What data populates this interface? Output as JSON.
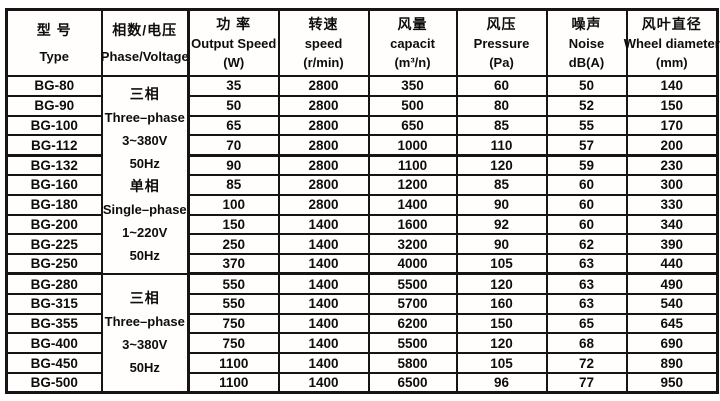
{
  "table": {
    "columns": [
      {
        "zh": "型 号",
        "en": "Type"
      },
      {
        "zh": "相数/电压",
        "en": "Phase/Voltage"
      },
      {
        "zh": "功 率",
        "en": "Output Speed",
        "unit": "(W)"
      },
      {
        "zh": "转速",
        "en": "speed",
        "unit": "(r/min)"
      },
      {
        "zh": "风量",
        "en": "capacit",
        "unit": "(m³/n)"
      },
      {
        "zh": "风压",
        "en": "Pressure",
        "unit": "(Pa)"
      },
      {
        "zh": "噪声",
        "en": "Noise",
        "unit": "dB(A)"
      },
      {
        "zh": "风叶直径",
        "en": "Wheel diameter",
        "unit": "(mm)"
      }
    ],
    "phase_groups": [
      {
        "row_span": 10,
        "lines": [
          "三相",
          "Three–phase",
          "3~380V",
          "50Hz",
          "单相",
          "Single–phase",
          "1~220V",
          "50Hz"
        ]
      },
      {
        "row_span": 6,
        "lines": [
          "三相",
          "Three–phase",
          "3~380V",
          "50Hz"
        ]
      }
    ],
    "rows": [
      {
        "type": "BG-80",
        "power": "35",
        "speed": "2800",
        "capacity": "350",
        "pressure": "60",
        "noise": "50",
        "diameter": "140"
      },
      {
        "type": "BG-90",
        "power": "50",
        "speed": "2800",
        "capacity": "500",
        "pressure": "80",
        "noise": "52",
        "diameter": "150"
      },
      {
        "type": "BG-100",
        "power": "65",
        "speed": "2800",
        "capacity": "650",
        "pressure": "85",
        "noise": "55",
        "diameter": "170"
      },
      {
        "type": "BG-112",
        "power": "70",
        "speed": "2800",
        "capacity": "1000",
        "pressure": "110",
        "noise": "57",
        "diameter": "200"
      },
      {
        "type": "BG-132",
        "power": "90",
        "speed": "2800",
        "capacity": "1100",
        "pressure": "120",
        "noise": "59",
        "diameter": "230"
      },
      {
        "type": "BG-160",
        "power": "85",
        "speed": "2800",
        "capacity": "1200",
        "pressure": "85",
        "noise": "60",
        "diameter": "300"
      },
      {
        "type": "BG-180",
        "power": "100",
        "speed": "2800",
        "capacity": "1400",
        "pressure": "90",
        "noise": "60",
        "diameter": "330"
      },
      {
        "type": "BG-200",
        "power": "150",
        "speed": "1400",
        "capacity": "1600",
        "pressure": "92",
        "noise": "60",
        "diameter": "340"
      },
      {
        "type": "BG-225",
        "power": "250",
        "speed": "1400",
        "capacity": "3200",
        "pressure": "90",
        "noise": "62",
        "diameter": "390"
      },
      {
        "type": "BG-250",
        "power": "370",
        "speed": "1400",
        "capacity": "4000",
        "pressure": "105",
        "noise": "63",
        "diameter": "440"
      },
      {
        "type": "BG-280",
        "power": "550",
        "speed": "1400",
        "capacity": "5500",
        "pressure": "120",
        "noise": "63",
        "diameter": "490"
      },
      {
        "type": "BG-315",
        "power": "550",
        "speed": "1400",
        "capacity": "5700",
        "pressure": "160",
        "noise": "63",
        "diameter": "540"
      },
      {
        "type": "BG-355",
        "power": "750",
        "speed": "1400",
        "capacity": "6200",
        "pressure": "150",
        "noise": "65",
        "diameter": "645"
      },
      {
        "type": "BG-400",
        "power": "750",
        "speed": "1400",
        "capacity": "5500",
        "pressure": "120",
        "noise": "68",
        "diameter": "690"
      },
      {
        "type": "BG-450",
        "power": "1100",
        "speed": "1400",
        "capacity": "5800",
        "pressure": "105",
        "noise": "72",
        "diameter": "890"
      },
      {
        "type": "BG-500",
        "power": "1100",
        "speed": "1400",
        "capacity": "6500",
        "pressure": "96",
        "noise": "77",
        "diameter": "950"
      }
    ],
    "thick_separator_after_rows": [
      3,
      9
    ]
  },
  "colors": {
    "border": "#171413",
    "text": "#0e0d0d",
    "background": "#ffffff"
  }
}
